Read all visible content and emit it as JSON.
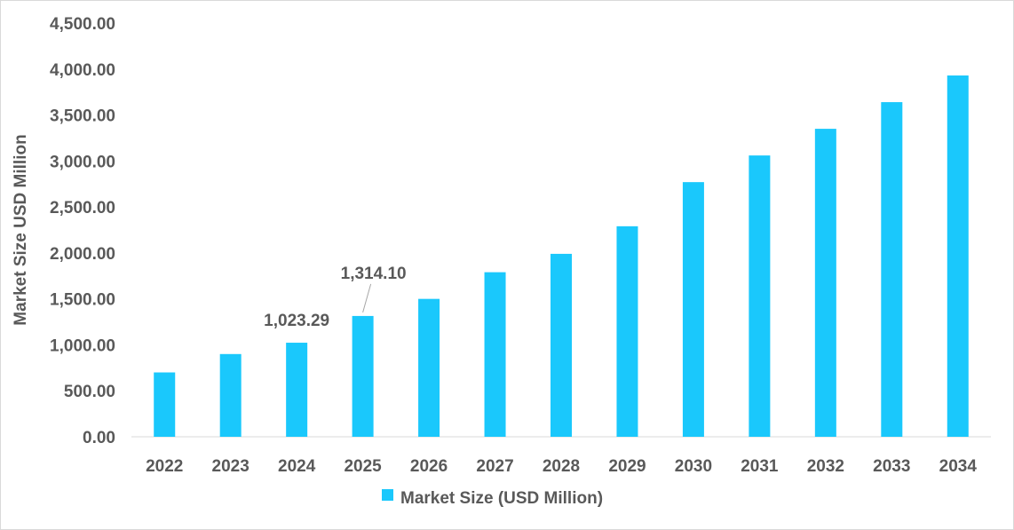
{
  "chart_data": {
    "type": "bar",
    "title": "",
    "xlabel": "",
    "ylabel": "Market Size USD Million",
    "ylim": [
      0,
      4500
    ],
    "yticks": [
      "0.00",
      "500.00",
      "1,000.00",
      "1,500.00",
      "2,000.00",
      "2,500.00",
      "3,000.00",
      "3,500.00",
      "4,000.00",
      "4,500.00"
    ],
    "grid": false,
    "legend_position": "bottom",
    "categories": [
      "2022",
      "2023",
      "2024",
      "2025",
      "2026",
      "2027",
      "2028",
      "2029",
      "2030",
      "2031",
      "2032",
      "2033",
      "2034"
    ],
    "series": [
      {
        "name": "Market Size (USD Million)",
        "color": "#1ac8fc",
        "values": [
          700,
          900,
          1023.29,
          1314.1,
          1500,
          1790,
          1990,
          2290,
          2770,
          3060,
          3350,
          3640,
          3930
        ]
      }
    ],
    "annotations": [
      {
        "category": "2024",
        "text": "1,023.29"
      },
      {
        "category": "2025",
        "text": "1,314.10"
      }
    ]
  }
}
